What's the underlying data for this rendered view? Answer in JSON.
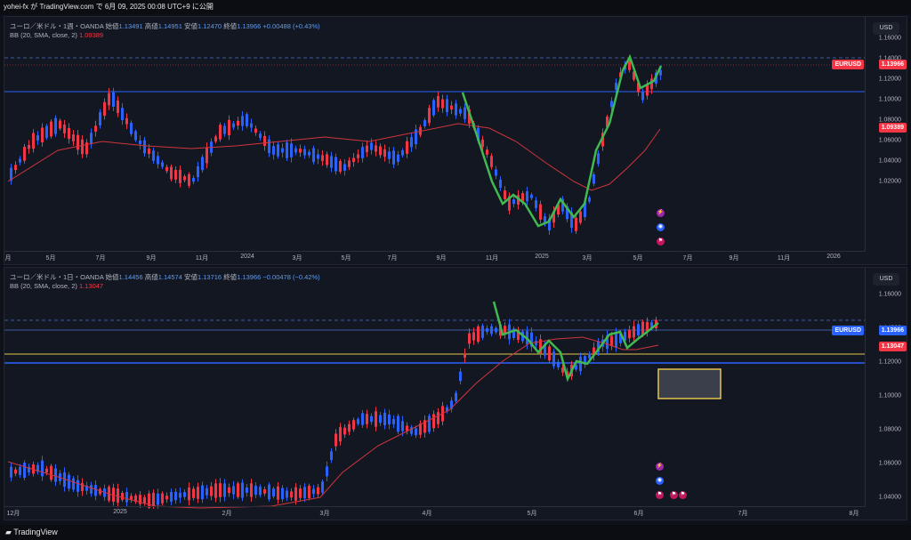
{
  "header": {
    "publish_text": "yohei-fx が TradingView.com で 6月 09, 2025 00:08 UTC+9 に公開"
  },
  "footer": {
    "brand": "TradingView"
  },
  "colors": {
    "up": "#f23645",
    "down": "#2962ff",
    "ma": "#d0353c",
    "line_blue": "#2962ff",
    "yellow": "#e6c44c",
    "green": "#3fb950"
  },
  "weekly": {
    "symbol_line": "ユーロ／米ドル・1週・OANDA",
    "open_label": "始値",
    "open": "1.13491",
    "high_label": "高値",
    "high": "1.14951",
    "low_label": "安値",
    "low": "1.12470",
    "close_label": "終値",
    "close": "1.13966",
    "change": "+0.00488 (+0.43%)",
    "bb_label": "BB (20, SMA, close, 2)",
    "bb_value": "1.09389",
    "currency": "USD",
    "price_ticks": [
      "1.16000",
      "1.14000",
      "1.12000",
      "1.10000",
      "1.08000",
      "1.06000",
      "1.04000",
      "1.02000"
    ],
    "badge_symbol": "EURUSD",
    "badge_price": "1.13966",
    "badge_ma": "1.09389",
    "time_ticks": [
      "月",
      "5月",
      "7月",
      "9月",
      "11月",
      "2024",
      "3月",
      "5月",
      "7月",
      "9月",
      "11月",
      "2025",
      "3月",
      "5月",
      "7月",
      "9月",
      "11月",
      "2026"
    ]
  },
  "daily": {
    "symbol_line": "ユーロ／米ドル・1日・OANDA",
    "open_label": "始値",
    "open": "1.14456",
    "high_label": "高値",
    "high": "1.14574",
    "low_label": "安値",
    "low": "1.13716",
    "close_label": "終値",
    "close": "1.13966",
    "change": "−0.00478 (−0.42%)",
    "bb_label": "BB (20, SMA, close, 2)",
    "bb_value": "1.13047",
    "currency": "USD",
    "price_ticks": [
      "1.16000",
      "1.14000",
      "1.12000",
      "1.10000",
      "1.08000",
      "1.06000",
      "1.04000"
    ],
    "badge_symbol": "EURUSD",
    "badge_price": "1.13966",
    "badge_ma": "1.13047",
    "time_ticks": [
      "12月",
      "2025",
      "2月",
      "3月",
      "4月",
      "5月",
      "6月",
      "7月",
      "8月"
    ]
  }
}
